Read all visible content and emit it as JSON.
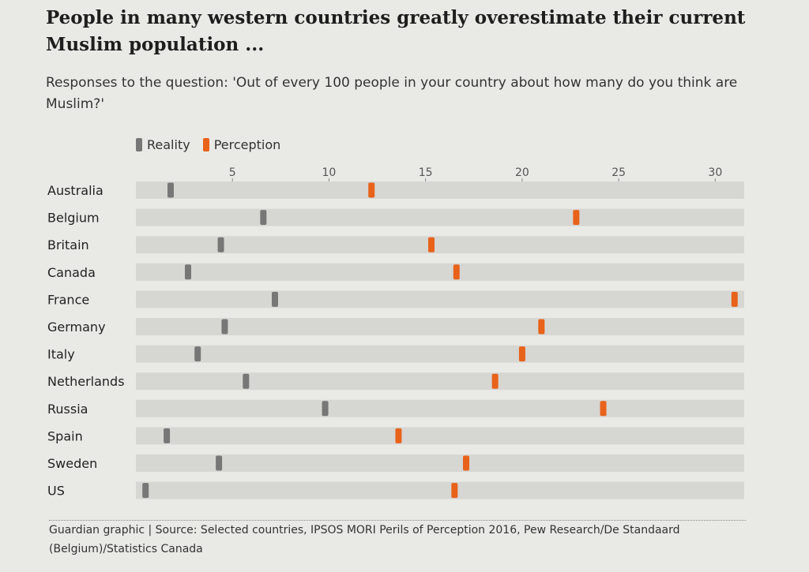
{
  "header": {
    "title": "People in many western countries greatly overestimate their current Muslim population ...",
    "subtitle": "Responses to the question: 'Out of every 100 people in your country about how many do you think are Muslim?'"
  },
  "legend": {
    "reality_label": "Reality",
    "perception_label": "Perception"
  },
  "colors": {
    "reality": "#777777",
    "perception": "#e8621a",
    "track": "#d6d6d3",
    "background": "#e9e9e6"
  },
  "chart_data": {
    "type": "scatter",
    "xlim": [
      0,
      31.5
    ],
    "ticks": [
      5,
      10,
      15,
      20,
      25,
      30
    ],
    "categories": [
      "Australia",
      "Belgium",
      "Britain",
      "Canada",
      "France",
      "Germany",
      "Italy",
      "Netherlands",
      "Russia",
      "Spain",
      "Sweden",
      "US"
    ],
    "series": [
      {
        "name": "Reality",
        "values": [
          1.8,
          6.6,
          4.4,
          2.7,
          7.2,
          4.6,
          3.2,
          5.7,
          9.8,
          1.6,
          4.3,
          0.5
        ]
      },
      {
        "name": "Perception",
        "values": [
          12.2,
          22.8,
          15.3,
          16.6,
          31.0,
          21.0,
          20.0,
          18.6,
          24.2,
          13.6,
          17.1,
          16.5
        ]
      }
    ],
    "legend_position": "top-left",
    "grid": false
  },
  "footer": {
    "source": "Guardian graphic | Source: Selected countries, IPSOS MORI Perils of Perception 2016, Pew Research/De Standaard (Belgium)/Statistics Canada"
  }
}
